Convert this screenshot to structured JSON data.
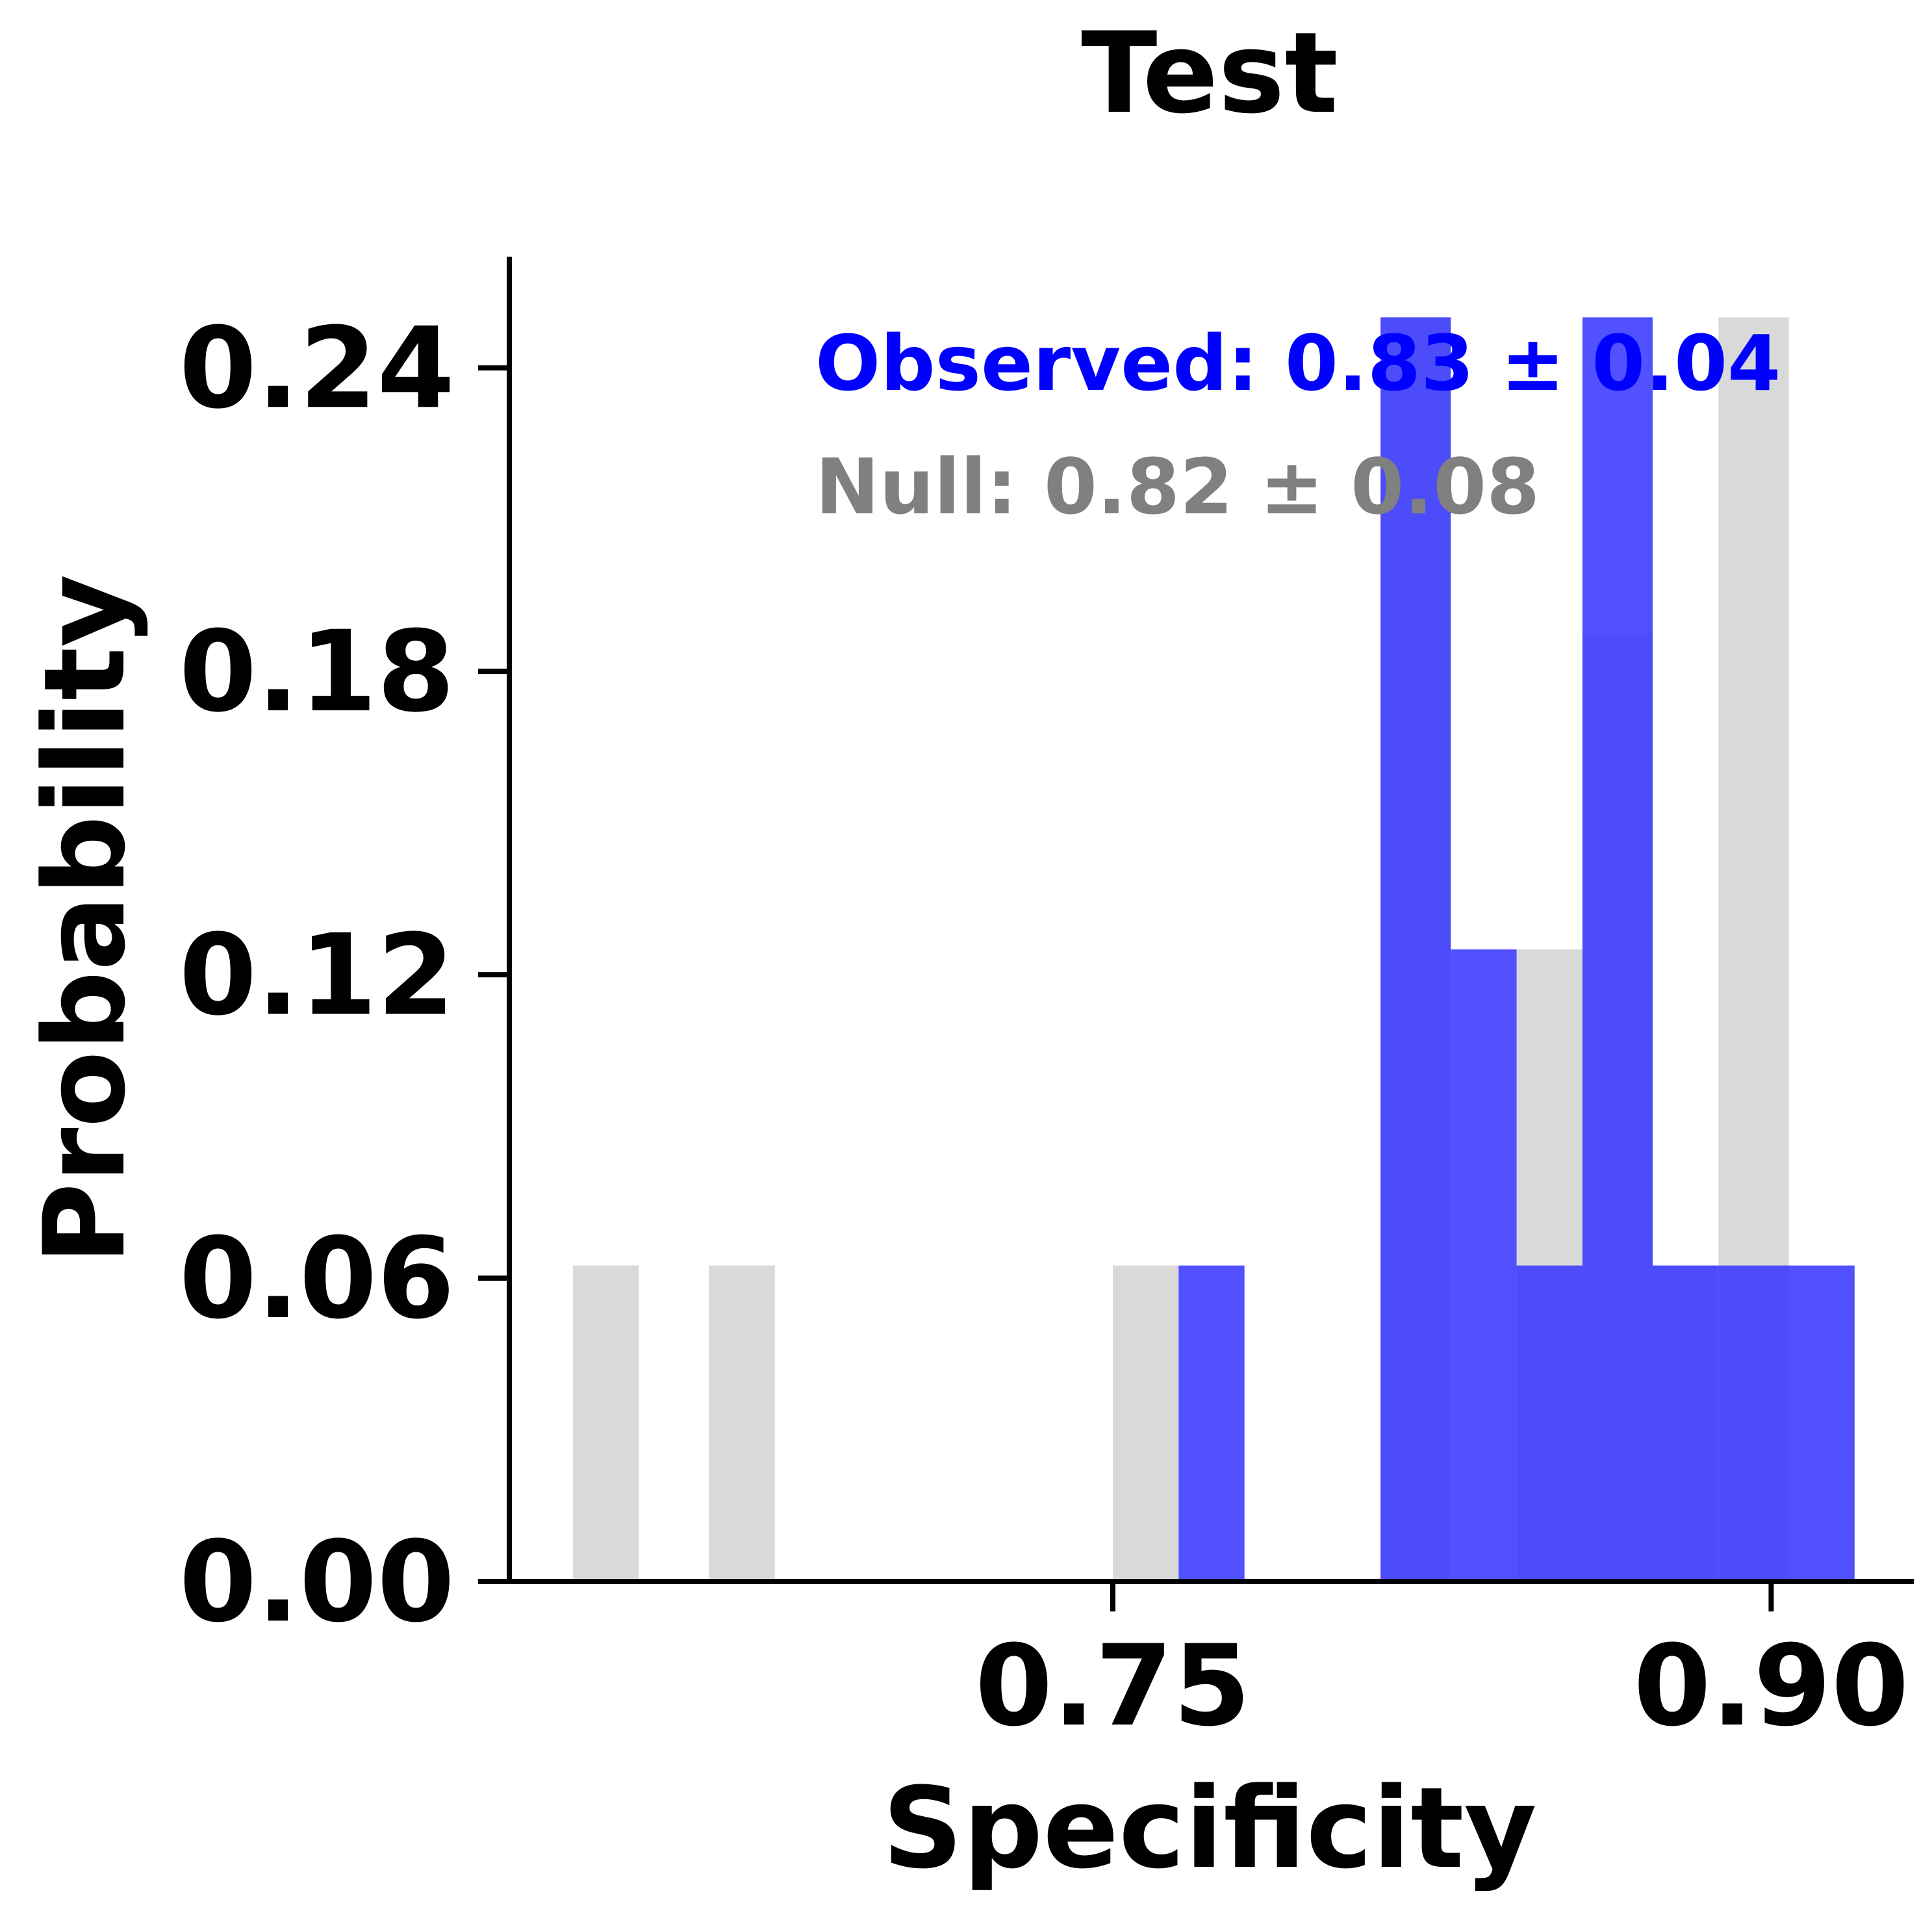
{
  "chart_data": {
    "type": "bar",
    "title": "Test",
    "xlabel": "Specificity",
    "ylabel": "Probability",
    "xticks": [
      {
        "value": 0.75,
        "label": "0.75"
      },
      {
        "value": 0.9,
        "label": "0.90"
      }
    ],
    "yticks": [
      {
        "value": 0.0,
        "label": "0.00"
      },
      {
        "value": 0.06,
        "label": "0.06"
      },
      {
        "value": 0.12,
        "label": "0.12"
      },
      {
        "value": 0.18,
        "label": "0.18"
      },
      {
        "value": 0.24,
        "label": "0.24"
      }
    ],
    "xlim": [
      0.6125,
      0.9325
    ],
    "ylim": [
      0.0,
      0.262
    ],
    "grid": false,
    "series": [
      {
        "role": "null",
        "color": "#d9d9d9",
        "bins": [
          {
            "x0": 0.627,
            "x1": 0.642,
            "value": 0.0625
          },
          {
            "x0": 0.658,
            "x1": 0.673,
            "value": 0.0625
          },
          {
            "x0": 0.75,
            "x1": 0.765,
            "value": 0.0625
          },
          {
            "x0": 0.811,
            "x1": 0.827,
            "value": 0.25
          },
          {
            "x0": 0.842,
            "x1": 0.857,
            "value": 0.125
          },
          {
            "x0": 0.857,
            "x1": 0.873,
            "value": 0.1875
          },
          {
            "x0": 0.873,
            "x1": 0.888,
            "value": 0.0625
          },
          {
            "x0": 0.888,
            "x1": 0.904,
            "value": 0.25
          }
        ]
      },
      {
        "role": "observed",
        "color": "#3333ff",
        "bins": [
          {
            "x0": 0.765,
            "x1": 0.78,
            "value": 0.0625
          },
          {
            "x0": 0.811,
            "x1": 0.827,
            "value": 0.25
          },
          {
            "x0": 0.827,
            "x1": 0.842,
            "value": 0.125
          },
          {
            "x0": 0.842,
            "x1": 0.857,
            "value": 0.0625
          },
          {
            "x0": 0.857,
            "x1": 0.873,
            "value": 0.25
          },
          {
            "x0": 0.873,
            "x1": 0.888,
            "value": 0.0625
          },
          {
            "x0": 0.888,
            "x1": 0.904,
            "value": 0.0625
          },
          {
            "x0": 0.904,
            "x1": 0.919,
            "value": 0.0625
          }
        ]
      }
    ],
    "annotations": [
      {
        "text": "Observed: 0.83 ± 0.04",
        "color": "#0000ff"
      },
      {
        "text": "Null: 0.82 ± 0.08",
        "color": "#808080"
      }
    ]
  }
}
